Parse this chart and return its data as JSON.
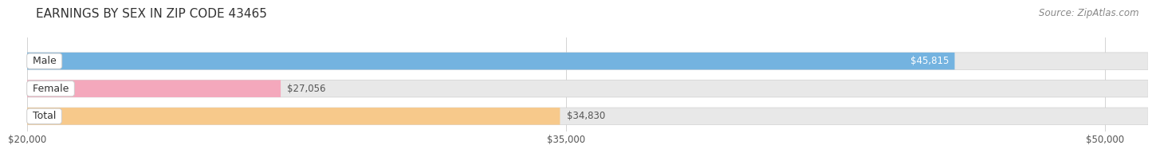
{
  "title": "EARNINGS BY SEX IN ZIP CODE 43465",
  "source": "Source: ZipAtlas.com",
  "categories": [
    "Male",
    "Female",
    "Total"
  ],
  "values": [
    45815,
    27056,
    34830
  ],
  "bar_colors": [
    "#74b3e0",
    "#f4a8bc",
    "#f7c98b"
  ],
  "bar_bg_color": "#e8e8e8",
  "x_min": 20000,
  "x_max": 50000,
  "x_ticks": [
    20000,
    35000,
    50000
  ],
  "x_tick_labels": [
    "$20,000",
    "$35,000",
    "$50,000"
  ],
  "title_fontsize": 11,
  "source_fontsize": 8.5,
  "label_fontsize": 9,
  "value_fontsize": 8.5,
  "bar_height": 0.62,
  "fig_width": 14.06,
  "fig_height": 1.96
}
